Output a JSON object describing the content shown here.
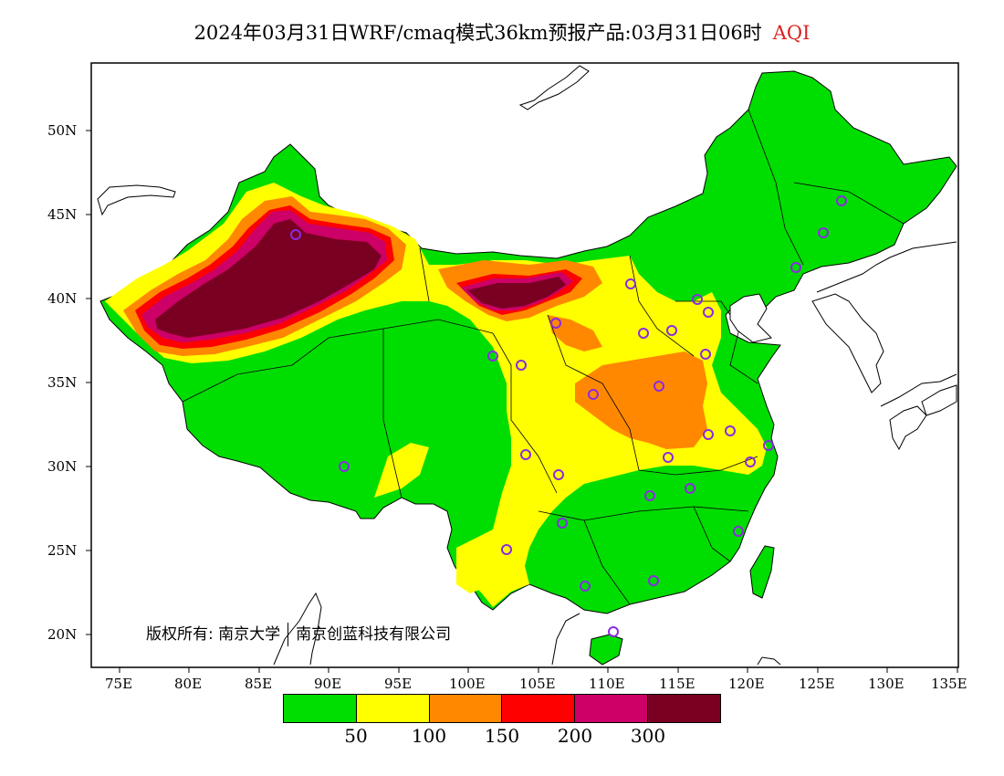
{
  "title": {
    "main": "2024年03月31日WRF/cmaq模式36km预报产品:03月31日06时",
    "variable": "AQI",
    "variable_color": "#dd2222"
  },
  "copyright": {
    "owner": "版权所有:",
    "org1": "南京大学",
    "org2": "南京创蓝科技有限公司"
  },
  "map": {
    "background": "#ffffff",
    "border_color": "#000000",
    "lat_labels": [
      "50N",
      "45N",
      "40N",
      "35N",
      "30N",
      "25N",
      "20N"
    ],
    "lon_labels": [
      "75E",
      "80E",
      "85E",
      "90E",
      "95E",
      "100E",
      "105E",
      "110E",
      "115E",
      "120E",
      "125E",
      "130E",
      "135E"
    ],
    "station_marker_color": "#8a2be2"
  },
  "legend": {
    "colors": [
      "#00dd00",
      "#ffff00",
      "#ff8800",
      "#ff0000",
      "#cc0066",
      "#7a0022"
    ],
    "labels": [
      "50",
      "100",
      "150",
      "200",
      "300"
    ]
  }
}
